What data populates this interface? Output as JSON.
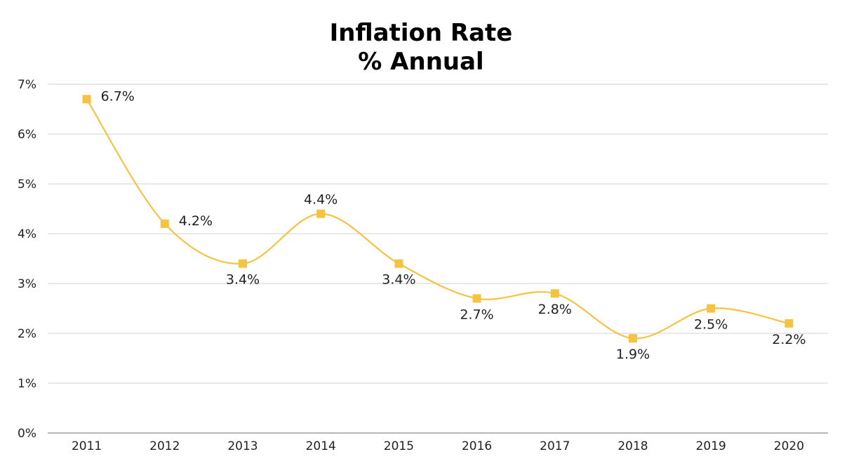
{
  "chart_data": {
    "type": "line",
    "title": "Inflation Rate",
    "subtitle": "% Annual",
    "xlabel": "",
    "ylabel": "",
    "categories": [
      "2011",
      "2012",
      "2013",
      "2014",
      "2015",
      "2016",
      "2017",
      "2018",
      "2019",
      "2020"
    ],
    "series": [
      {
        "values": [
          6.7,
          4.2,
          3.4,
          4.4,
          3.4,
          2.7,
          2.8,
          1.9,
          2.5,
          2.2
        ],
        "labels": [
          "6.7%",
          "4.2%",
          "3.4%",
          "4.4%",
          "3.4%",
          "2.7%",
          "2.8%",
          "1.9%",
          "2.5%",
          "2.2%"
        ],
        "label_positions": [
          "right",
          "right",
          "below",
          "above",
          "below",
          "below",
          "below",
          "below",
          "below",
          "below"
        ],
        "color": "#F5C342",
        "marker": "square",
        "smooth": true
      }
    ],
    "ylim": [
      0,
      7
    ],
    "yticks": [
      "0%",
      "1%",
      "2%",
      "3%",
      "4%",
      "5%",
      "6%",
      "7%"
    ],
    "grid": true,
    "legend": "none"
  }
}
